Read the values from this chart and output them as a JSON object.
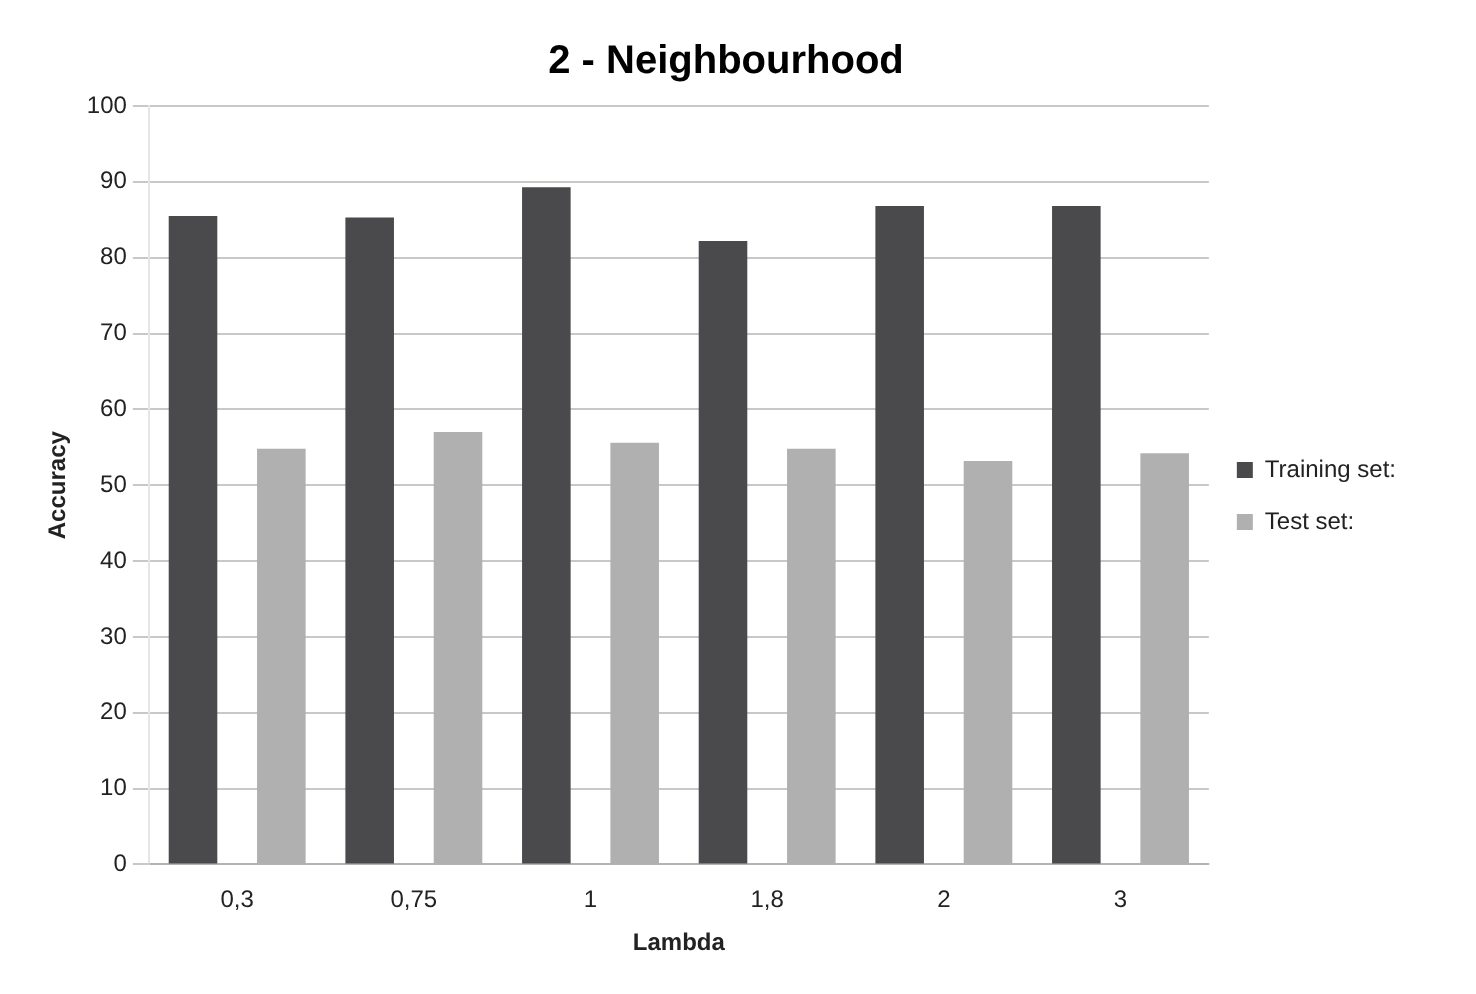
{
  "chart_data": {
    "type": "bar",
    "title": "2 - Neighbourhood",
    "xlabel": "Lambda",
    "ylabel": "Accuracy",
    "categories": [
      "0,3",
      "0,75",
      "1",
      "1,8",
      "2",
      "3"
    ],
    "series": [
      {
        "name": "Training set:",
        "color": "#4a4a4c",
        "values": [
          85.5,
          85.3,
          89.3,
          82.2,
          86.8,
          86.8
        ]
      },
      {
        "name": "Test set:",
        "color": "#b0b0b0",
        "values": [
          54.8,
          57.0,
          55.6,
          54.8,
          53.2,
          54.2
        ]
      }
    ],
    "ylim": [
      0,
      100
    ],
    "yticks": [
      0,
      10,
      20,
      30,
      40,
      50,
      60,
      70,
      80,
      90,
      100
    ],
    "grid": "y",
    "legend": "right"
  }
}
